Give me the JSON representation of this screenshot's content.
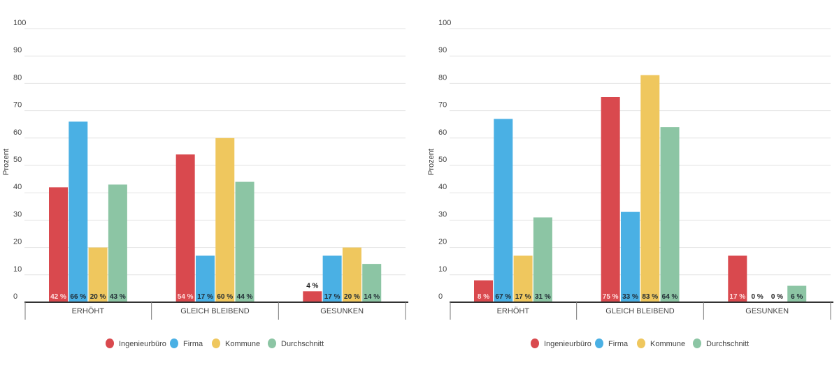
{
  "colors": {
    "Ingenieurbüro": "#d9494e",
    "Firma": "#4ab0e4",
    "Kommune": "#efc75e",
    "Durchschnitt": "#8cc5a4"
  },
  "chart_data": [
    {
      "type": "bar",
      "ylabel": "Prozent",
      "ylim": [
        0,
        100
      ],
      "yticks": [
        0,
        10,
        20,
        30,
        40,
        50,
        60,
        70,
        80,
        90,
        100
      ],
      "grid": true,
      "legend": "bottom",
      "categories": [
        "ERHÖHT",
        "GLEICH BLEIBEND",
        "GESUNKEN"
      ],
      "series": [
        {
          "name": "Ingenieurbüro",
          "values": [
            42,
            54,
            4
          ]
        },
        {
          "name": "Firma",
          "values": [
            66,
            17,
            17
          ]
        },
        {
          "name": "Kommune",
          "values": [
            20,
            60,
            20
          ]
        },
        {
          "name": "Durchschnitt",
          "values": [
            43,
            44,
            14
          ]
        }
      ],
      "value_suffix": " %"
    },
    {
      "type": "bar",
      "ylabel": "Prozent",
      "ylim": [
        0,
        100
      ],
      "yticks": [
        0,
        10,
        20,
        30,
        40,
        50,
        60,
        70,
        80,
        90,
        100
      ],
      "grid": true,
      "legend": "bottom",
      "categories": [
        "ERHÖHT",
        "GLEICH BLEIBEND",
        "GESUNKEN"
      ],
      "series": [
        {
          "name": "Ingenieurbüro",
          "values": [
            8,
            75,
            17
          ]
        },
        {
          "name": "Firma",
          "values": [
            67,
            33,
            0
          ]
        },
        {
          "name": "Kommune",
          "values": [
            17,
            83,
            0
          ]
        },
        {
          "name": "Durchschnitt",
          "values": [
            31,
            64,
            6
          ]
        }
      ],
      "value_suffix": " %"
    }
  ]
}
